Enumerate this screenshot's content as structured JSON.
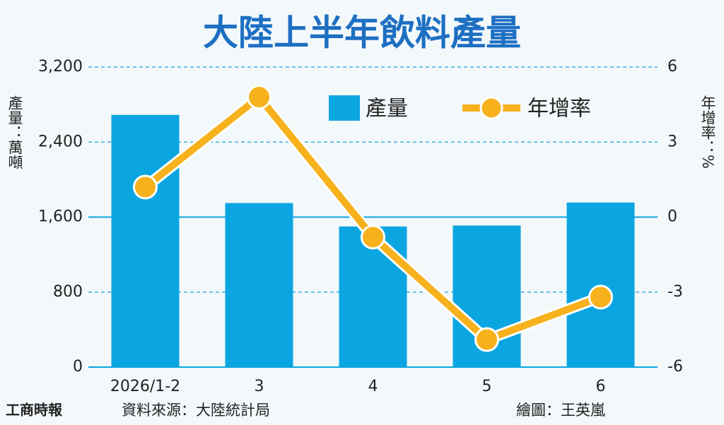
{
  "chart_data": {
    "type": "combo",
    "title": "大陸上半年飲料產量",
    "y_label": "產量：萬噸",
    "y2_label": "年增率：%",
    "categories": [
      "2026/1-2",
      "3",
      "4",
      "5",
      "6"
    ],
    "series": [
      {
        "name": "產量",
        "type": "bar",
        "color": "#0ba6e1",
        "values": [
          2690,
          1750,
          1500,
          1510,
          1755
        ]
      },
      {
        "name": "年增率",
        "type": "line",
        "axis": "y2",
        "color": "#f6b11c",
        "values": [
          1.2,
          4.8,
          -0.8,
          -4.9,
          -3.2
        ]
      }
    ],
    "ylim": [
      0,
      3200
    ],
    "yticks": [
      0,
      800,
      {
        "value": 1600,
        "label": "1,600"
      },
      {
        "value": 2400,
        "label": "2,400"
      },
      {
        "value": 3200,
        "label": "3,200"
      }
    ],
    "y2lim": [
      -6,
      6
    ],
    "y2ticks": [
      -6,
      -3,
      0,
      3,
      6
    ],
    "grid": true,
    "source": "資料來源：大陸統計局",
    "credit": "繪圖：王英嵐",
    "publisher": "工商時報"
  }
}
